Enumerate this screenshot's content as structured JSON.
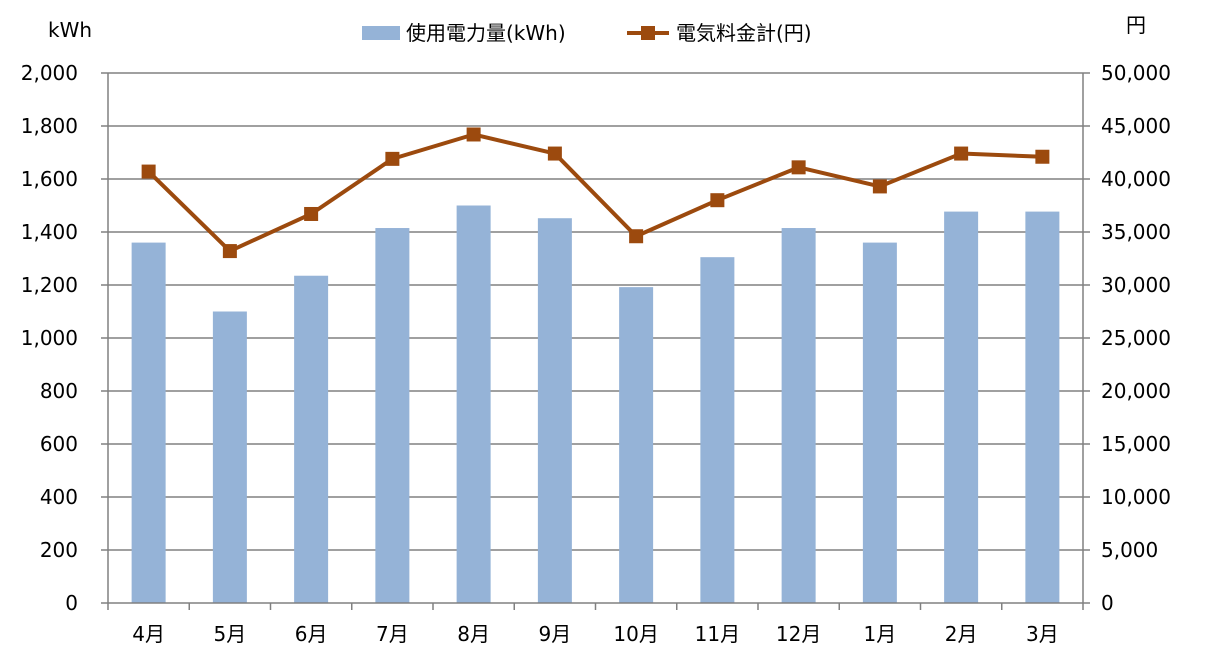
{
  "chart_data": {
    "type": "bar+line",
    "categories": [
      "4月",
      "5月",
      "6月",
      "7月",
      "8月",
      "9月",
      "10月",
      "11月",
      "12月",
      "1月",
      "2月",
      "3月"
    ],
    "series": [
      {
        "name": "使用電力量(kWh)",
        "type": "bar",
        "axis": "left",
        "color": "#95b3d7",
        "values": [
          1360,
          1100,
          1235,
          1415,
          1500,
          1452,
          1192,
          1305,
          1415,
          1360,
          1477,
          1477
        ]
      },
      {
        "name": "電気料金計(円)",
        "type": "line",
        "axis": "right",
        "color": "#9c4a0e",
        "marker": "square",
        "values": [
          40700,
          33200,
          36700,
          41900,
          44200,
          42400,
          34600,
          38000,
          41100,
          39300,
          42400,
          42100
        ]
      }
    ],
    "y_left": {
      "unit": "kWh",
      "range": [
        0,
        2000
      ],
      "ticks": [
        "0",
        "200",
        "400",
        "600",
        "800",
        "1,000",
        "1,200",
        "1,400",
        "1,600",
        "1,800",
        "2,000"
      ]
    },
    "y_right": {
      "unit": "円",
      "range": [
        0,
        50000
      ],
      "ticks": [
        "0",
        "5,000",
        "10,000",
        "15,000",
        "20,000",
        "25,000",
        "30,000",
        "35,000",
        "40,000",
        "45,000",
        "50,000"
      ]
    },
    "grid": true,
    "legend_position": "top-center"
  }
}
